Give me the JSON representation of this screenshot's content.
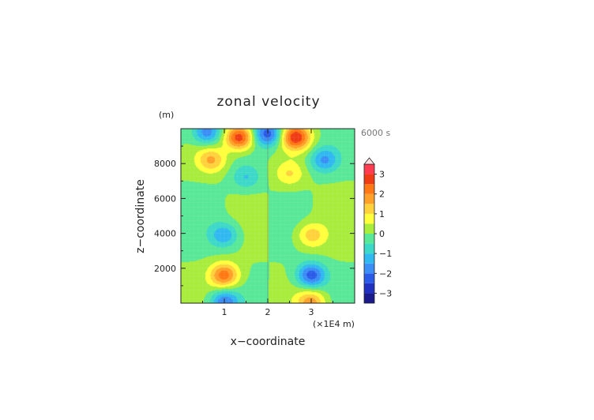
{
  "chart_data": {
    "type": "heatmap",
    "title": "zonal velocity",
    "xlabel": "x−coordinate",
    "ylabel": "z−coordinate",
    "x_unit": "(×1E4 m)",
    "y_unit": "(m)",
    "time_label": "6000 s",
    "xlim": [
      0,
      4
    ],
    "ylim": [
      0,
      10000
    ],
    "x_ticks": [
      1,
      2,
      3
    ],
    "x_tick_labels": [
      "1",
      "2",
      "3"
    ],
    "y_ticks": [
      2000,
      4000,
      6000,
      8000
    ],
    "y_tick_labels": [
      "2000",
      "4000",
      "6000",
      "8000"
    ],
    "colorbar": {
      "ticks": [
        3,
        2,
        1,
        0,
        -1,
        -2,
        -3
      ],
      "tick_labels": [
        "3",
        "2",
        "1",
        "0",
        "−1",
        "−2",
        "−3"
      ],
      "levels": [
        -3.5,
        -3,
        -2.5,
        -2,
        -1.5,
        -1,
        -0.5,
        0,
        0.5,
        1,
        1.5,
        2,
        2.5,
        3,
        3.5
      ],
      "colors": [
        "#1a1a8c",
        "#2030c0",
        "#2a5ae8",
        "#3a8ef5",
        "#30b8f0",
        "#3cd8c8",
        "#58e898",
        "#a8ec3c",
        "#ffff3c",
        "#ffd23c",
        "#ffa028",
        "#ff7814",
        "#f03c14",
        "#ff3c50",
        "#ffa0a8"
      ],
      "extend_max": true
    },
    "field": {
      "description_features": [
        {
          "x": 1.0,
          "z": 1600,
          "amp": 2.3
        },
        {
          "x": 3.0,
          "z": 1600,
          "amp": -2.3
        },
        {
          "x": 1.0,
          "z": 3900,
          "amp": -1.4
        },
        {
          "x": 3.0,
          "z": 3900,
          "amp": 1.3
        },
        {
          "x": 0.7,
          "z": 8200,
          "amp": 1.5
        },
        {
          "x": 3.3,
          "z": 8200,
          "amp": -1.5
        },
        {
          "x": 1.35,
          "z": 9500,
          "amp": 3.0
        },
        {
          "x": 2.65,
          "z": 9500,
          "amp": 2.8
        },
        {
          "x": 2.0,
          "z": 9700,
          "amp": -2.3
        },
        {
          "x": 0.6,
          "z": 9800,
          "amp": -2.0
        },
        {
          "x": 1.5,
          "z": 7200,
          "amp": -1.0
        },
        {
          "x": 2.5,
          "z": 7400,
          "amp": 1.0
        },
        {
          "x": 1.0,
          "z": 50,
          "amp": -2.0
        },
        {
          "x": 3.0,
          "z": 50,
          "amp": 1.8
        }
      ]
    }
  }
}
